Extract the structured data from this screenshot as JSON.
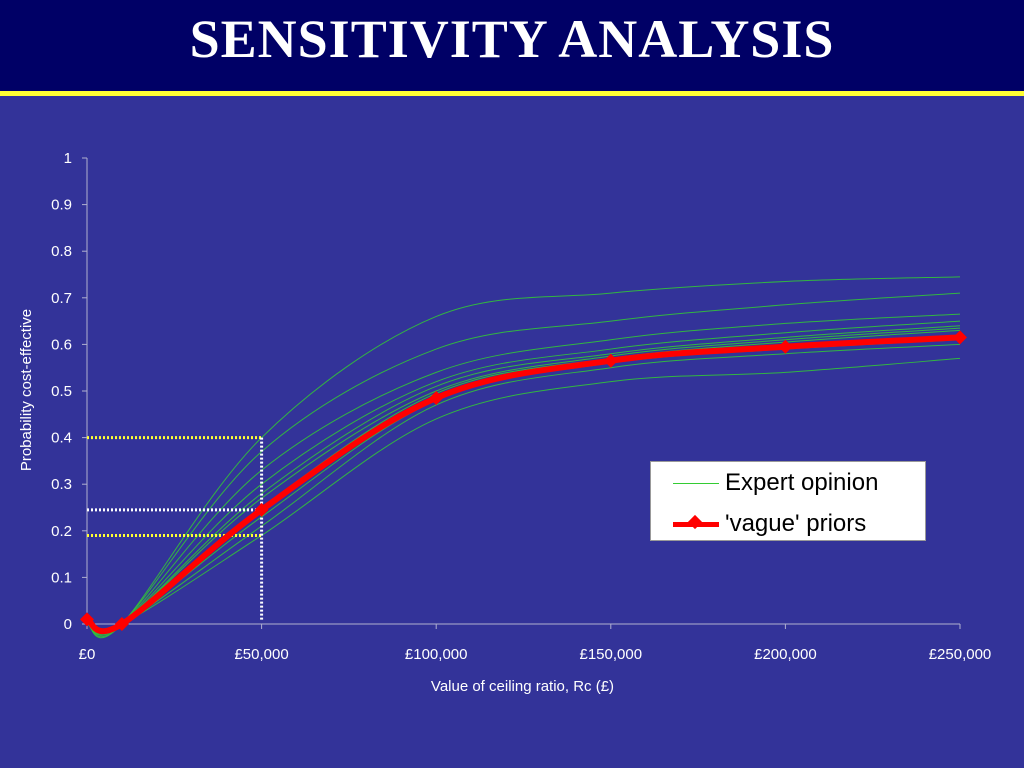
{
  "slide": {
    "title": "SENSITIVITY ANALYSIS"
  },
  "colors": {
    "background": "#333399",
    "title_bar": "#000066",
    "title_rule": "#ffff33",
    "expert_lines": "#33cc33",
    "vague_line": "#ff0000",
    "guide_yellow": "#ffff33",
    "guide_white": "#ffffff"
  },
  "chart_data": {
    "type": "line",
    "xlabel": "Value of ceiling ratio, Rc (£)",
    "ylabel": "Probability cost-effective",
    "xlim": [
      0,
      250000
    ],
    "ylim": [
      0,
      1
    ],
    "x_ticks": [
      0,
      50000,
      100000,
      150000,
      200000,
      250000
    ],
    "x_tick_labels": [
      "£0",
      "£50,000",
      "£100,000",
      "£150,000",
      "£200,000",
      "£250,000"
    ],
    "y_ticks": [
      0,
      0.1,
      0.2,
      0.3,
      0.4,
      0.5,
      0.6,
      0.7,
      0.8,
      0.9,
      1
    ],
    "y_tick_labels": [
      "0",
      "0.1",
      "0.2",
      "0.3",
      "0.4",
      "0.5",
      "0.6",
      "0.7",
      "0.8",
      "0.9",
      "1"
    ],
    "grid": false,
    "legend": {
      "placement": "center-right",
      "entries": [
        "Expert opinion",
        "'vague' priors"
      ]
    },
    "x": [
      0,
      10000,
      50000,
      100000,
      150000,
      200000,
      250000
    ],
    "series": [
      {
        "name": "'vague' priors",
        "style": "thick-red-diamond",
        "values": [
          0.01,
          0.0,
          0.245,
          0.485,
          0.565,
          0.595,
          0.615
        ]
      },
      {
        "name": "Expert opinion",
        "style": "thin-green",
        "group": [
          [
            0.0,
            0.0,
            0.4,
            0.66,
            0.71,
            0.735,
            0.745
          ],
          [
            0.0,
            0.0,
            0.37,
            0.59,
            0.65,
            0.685,
            0.71
          ],
          [
            0.0,
            0.0,
            0.33,
            0.54,
            0.61,
            0.645,
            0.665
          ],
          [
            0.0,
            0.0,
            0.3,
            0.52,
            0.59,
            0.625,
            0.65
          ],
          [
            0.0,
            0.0,
            0.28,
            0.51,
            0.58,
            0.615,
            0.64
          ],
          [
            0.0,
            0.0,
            0.27,
            0.5,
            0.575,
            0.61,
            0.635
          ],
          [
            0.0,
            0.0,
            0.25,
            0.495,
            0.57,
            0.605,
            0.63
          ],
          [
            0.0,
            0.0,
            0.23,
            0.48,
            0.56,
            0.59,
            0.61
          ],
          [
            0.0,
            0.0,
            0.21,
            0.47,
            0.55,
            0.58,
            0.6
          ],
          [
            0.0,
            0.0,
            0.19,
            0.44,
            0.52,
            0.54,
            0.57
          ]
        ]
      }
    ],
    "guides": [
      {
        "color": "yellow",
        "y": 0.4,
        "x": 50000
      },
      {
        "color": "white",
        "y": 0.245,
        "x": 50000
      },
      {
        "color": "yellow",
        "y": 0.19,
        "x": 50000
      }
    ]
  }
}
